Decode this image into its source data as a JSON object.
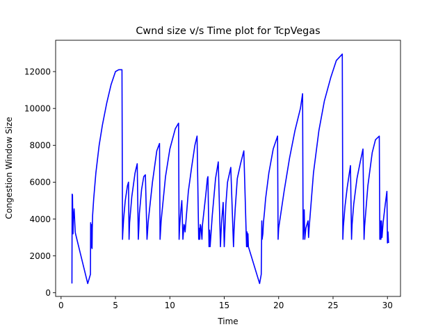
{
  "chart_data": {
    "type": "line",
    "title": "Cwnd size v/s Time plot for TcpVegas",
    "xlabel": "Time",
    "ylabel": "Congestion Window Size",
    "xlim": [
      -0.5,
      31.2
    ],
    "ylim": [
      -200,
      13700
    ],
    "xticks": [
      0,
      5,
      10,
      15,
      20,
      25,
      30
    ],
    "yticks": [
      0,
      2000,
      4000,
      6000,
      8000,
      10000,
      12000
    ],
    "xtick_labels": [
      "0",
      "5",
      "10",
      "15",
      "20",
      "25",
      "30"
    ],
    "ytick_labels": [
      "0",
      "2000",
      "4000",
      "6000",
      "8000",
      "10000",
      "12000"
    ],
    "grid": false,
    "legend": "none",
    "series_color": "#0000ff",
    "series": [
      {
        "x": [
          1.0,
          1.02,
          1.05,
          1.1,
          1.13,
          1.2,
          1.3,
          1.33,
          2.45,
          2.7,
          2.72,
          2.75,
          2.78,
          2.8,
          2.85,
          2.87,
          2.9,
          3.0,
          3.2,
          3.5,
          3.8,
          4.2,
          4.6,
          5.0,
          5.3,
          5.6,
          5.65,
          5.67,
          5.75,
          5.9,
          6.1,
          6.2,
          6.25,
          6.3,
          6.5,
          6.8,
          7.0,
          7.1,
          7.15,
          7.2,
          7.4,
          7.6,
          7.75,
          7.9,
          7.95,
          8.0,
          8.4,
          8.8,
          9.05,
          9.1,
          9.2,
          9.6,
          10.0,
          10.5,
          10.8,
          10.85,
          10.9,
          11.0,
          11.1,
          11.2,
          11.3,
          11.35,
          11.4,
          11.7,
          12.0,
          12.3,
          12.5,
          12.65,
          12.7,
          12.75,
          12.8,
          12.85,
          12.95,
          13.0,
          13.3,
          13.45,
          13.5,
          13.6,
          13.65,
          13.7,
          13.9,
          14.2,
          14.45,
          14.65,
          14.7,
          14.75,
          14.9,
          15.0,
          15.05,
          15.15,
          15.3,
          15.6,
          15.85,
          15.9,
          16.0,
          16.2,
          16.5,
          16.8,
          17.05,
          17.1,
          17.12,
          17.18,
          17.22,
          18.25,
          18.4,
          18.45,
          18.48,
          18.55,
          18.6,
          18.7,
          18.8,
          19.1,
          19.5,
          19.9,
          19.95,
          20.0,
          20.5,
          21.0,
          21.5,
          22.0,
          22.2,
          22.25,
          22.3,
          22.35,
          22.4,
          22.5,
          22.7,
          22.75,
          22.8,
          23.2,
          23.7,
          24.2,
          24.8,
          25.3,
          25.85,
          25.9,
          25.95,
          26.1,
          26.3,
          26.6,
          26.7,
          26.75,
          26.9,
          27.2,
          27.5,
          27.75,
          27.85,
          27.9,
          28.2,
          28.6,
          28.9,
          29.25,
          29.3,
          29.35,
          29.4,
          29.45,
          29.5,
          29.6,
          29.8,
          29.95,
          30.0,
          30.05,
          30.1
        ],
        "y": [
          500,
          5350,
          5300,
          3200,
          4000,
          4550,
          3300,
          3200,
          500,
          1000,
          3800,
          2700,
          3700,
          2500,
          2400,
          3500,
          4200,
          5100,
          6500,
          8000,
          9100,
          10300,
          11300,
          12000,
          12100,
          12100,
          2900,
          3200,
          4000,
          5000,
          5800,
          6000,
          2900,
          3800,
          5200,
          6500,
          7000,
          2900,
          3500,
          4300,
          5600,
          6300,
          6400,
          2900,
          3300,
          3800,
          6000,
          7700,
          8100,
          2900,
          3900,
          6300,
          7800,
          8900,
          9200,
          2900,
          3600,
          4400,
          5000,
          2900,
          3700,
          3600,
          3300,
          5500,
          6800,
          8000,
          8500,
          2900,
          3500,
          2900,
          3700,
          3600,
          2900,
          3700,
          5300,
          6200,
          6300,
          2500,
          3400,
          2500,
          4200,
          6200,
          7100,
          2500,
          3200,
          3800,
          4900,
          2500,
          3300,
          4800,
          6000,
          6800,
          2500,
          3400,
          4500,
          6200,
          7000,
          7700,
          2500,
          3300,
          2500,
          3200,
          2500,
          500,
          1000,
          3900,
          2900,
          3200,
          3800,
          4400,
          5100,
          6500,
          7800,
          8500,
          2900,
          3500,
          5500,
          7300,
          8800,
          10000,
          10800,
          2900,
          3700,
          4500,
          2900,
          3500,
          3900,
          3000,
          3500,
          6500,
          8800,
          10400,
          11700,
          12600,
          12950,
          2900,
          3600,
          4700,
          5700,
          6900,
          2900,
          3700,
          4800,
          6200,
          7100,
          7800,
          2900,
          3600,
          5800,
          7600,
          8300,
          8500,
          2900,
          3900,
          2900,
          3900,
          3000,
          3800,
          4800,
          5500,
          2700,
          3300,
          2700
        ]
      }
    ]
  }
}
